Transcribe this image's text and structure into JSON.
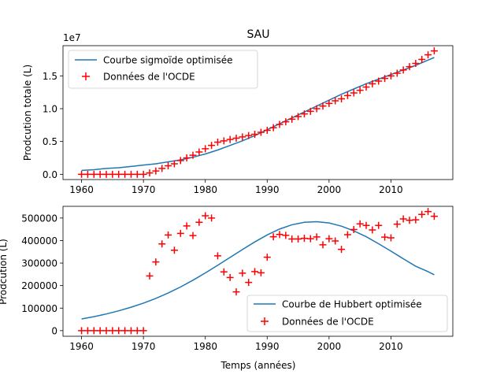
{
  "figure_title": "SAU",
  "chart_data": [
    {
      "type": "line+scatter",
      "title": "SAU",
      "xlabel": "",
      "ylabel": "Prodcution totale (L)",
      "exponent_label": "1e7",
      "xlim": [
        1957,
        2020
      ],
      "ylim": [
        -0.08,
        1.96
      ],
      "xticks": [
        1960,
        1970,
        1980,
        1990,
        2000,
        2010
      ],
      "yticks": [
        0.0,
        0.5,
        1.0,
        1.5
      ],
      "ytick_labels": [
        "0.0",
        "0.5",
        "1.0",
        "1.5"
      ],
      "legend_position": "upper-left",
      "curve": {
        "name": "Courbe sigmoïde optimisée",
        "color": "#1f77b4",
        "x": [
          1960,
          1962,
          1964,
          1966,
          1968,
          1970,
          1972,
          1974,
          1976,
          1978,
          1980,
          1982,
          1984,
          1986,
          1988,
          1990,
          1992,
          1994,
          1996,
          1998,
          2000,
          2002,
          2004,
          2006,
          2008,
          2010,
          2012,
          2014,
          2016,
          2017
        ],
        "y": [
          0.06,
          0.07,
          0.09,
          0.1,
          0.12,
          0.14,
          0.16,
          0.19,
          0.22,
          0.26,
          0.31,
          0.37,
          0.44,
          0.51,
          0.59,
          0.68,
          0.77,
          0.86,
          0.95,
          1.04,
          1.13,
          1.22,
          1.3,
          1.38,
          1.45,
          1.52,
          1.59,
          1.66,
          1.74,
          1.78
        ]
      },
      "scatter": {
        "name": "Données de l'OCDE",
        "color": "#ff0000",
        "marker": "+",
        "x": [
          1960,
          1961,
          1962,
          1963,
          1964,
          1965,
          1966,
          1967,
          1968,
          1969,
          1970,
          1971,
          1972,
          1973,
          1974,
          1975,
          1976,
          1977,
          1978,
          1979,
          1980,
          1981,
          1982,
          1983,
          1984,
          1985,
          1986,
          1987,
          1988,
          1989,
          1990,
          1991,
          1992,
          1993,
          1994,
          1995,
          1996,
          1997,
          1998,
          1999,
          2000,
          2001,
          2002,
          2003,
          2004,
          2005,
          2006,
          2007,
          2008,
          2009,
          2010,
          2011,
          2012,
          2013,
          2014,
          2015,
          2016,
          2017
        ],
        "y": [
          0,
          0,
          0,
          0,
          0,
          0,
          0,
          0,
          0,
          0,
          0,
          0.02,
          0.05,
          0.09,
          0.13,
          0.16,
          0.21,
          0.25,
          0.29,
          0.34,
          0.39,
          0.44,
          0.49,
          0.51,
          0.53,
          0.55,
          0.57,
          0.59,
          0.61,
          0.64,
          0.67,
          0.71,
          0.76,
          0.8,
          0.84,
          0.88,
          0.92,
          0.96,
          1.0,
          1.04,
          1.08,
          1.12,
          1.15,
          1.2,
          1.24,
          1.28,
          1.33,
          1.38,
          1.42,
          1.46,
          1.5,
          1.54,
          1.59,
          1.64,
          1.69,
          1.75,
          1.82,
          1.88
        ]
      }
    },
    {
      "type": "line+scatter",
      "title": "",
      "xlabel": "Temps (années)",
      "ylabel": "Prodcution (L)",
      "xlim": [
        1957,
        2020
      ],
      "ylim": [
        -25000,
        552000
      ],
      "xticks": [
        1960,
        1970,
        1980,
        1990,
        2000,
        2010
      ],
      "yticks": [
        0,
        100000,
        200000,
        300000,
        400000,
        500000
      ],
      "ytick_labels": [
        "0",
        "100000",
        "200000",
        "300000",
        "400000",
        "500000"
      ],
      "legend_position": "lower-right",
      "curve": {
        "name": "Courbe de Hubbert optimisée",
        "color": "#1f77b4",
        "x": [
          1960,
          1962,
          1964,
          1966,
          1968,
          1970,
          1972,
          1974,
          1976,
          1978,
          1980,
          1982,
          1984,
          1986,
          1988,
          1990,
          1992,
          1994,
          1996,
          1998,
          2000,
          2002,
          2004,
          2006,
          2008,
          2010,
          2012,
          2014,
          2016,
          2017
        ],
        "y": [
          52000,
          62000,
          74000,
          88000,
          104000,
          122000,
          143000,
          167000,
          194000,
          224000,
          256000,
          290000,
          325000,
          360000,
          394000,
          425000,
          451000,
          470000,
          481000,
          484000,
          478000,
          464000,
          443000,
          417000,
          386000,
          353000,
          319000,
          286000,
          262000,
          248000
        ]
      },
      "scatter": {
        "name": "Données de l'OCDE",
        "color": "#ff0000",
        "marker": "+",
        "x": [
          1960,
          1961,
          1962,
          1963,
          1964,
          1965,
          1966,
          1967,
          1968,
          1969,
          1970,
          1971,
          1972,
          1973,
          1974,
          1975,
          1976,
          1977,
          1978,
          1979,
          1980,
          1981,
          1982,
          1983,
          1984,
          1985,
          1986,
          1987,
          1988,
          1989,
          1990,
          1991,
          1992,
          1993,
          1994,
          1995,
          1996,
          1997,
          1998,
          1999,
          2000,
          2001,
          2002,
          2003,
          2004,
          2005,
          2006,
          2007,
          2008,
          2009,
          2010,
          2011,
          2012,
          2013,
          2014,
          2015,
          2016,
          2017
        ],
        "y": [
          0,
          0,
          0,
          0,
          0,
          0,
          0,
          0,
          0,
          0,
          0,
          243000,
          305000,
          385000,
          425000,
          357000,
          432000,
          465000,
          422000,
          481000,
          510000,
          500000,
          332000,
          261000,
          236000,
          172000,
          255000,
          214000,
          262000,
          257000,
          326000,
          417000,
          427000,
          423000,
          407000,
          407000,
          410000,
          408000,
          416000,
          381000,
          408000,
          398000,
          361000,
          426000,
          449000,
          474000,
          467000,
          447000,
          467000,
          415000,
          412000,
          473000,
          496000,
          490000,
          492000,
          516000,
          529000,
          508000
        ]
      }
    }
  ]
}
